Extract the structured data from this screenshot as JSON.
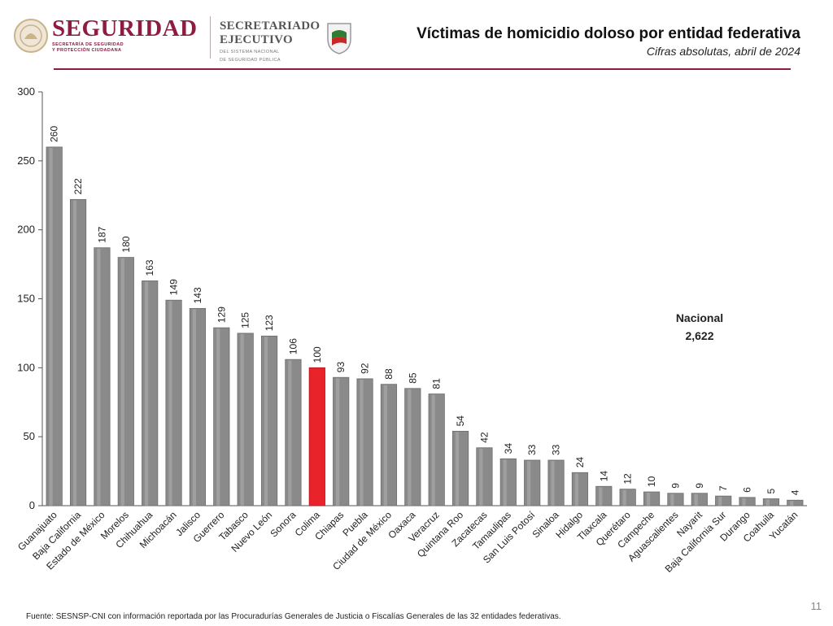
{
  "header": {
    "brand_title": "SEGURIDAD",
    "brand_sub_1": "SECRETARÍA DE SEGURIDAD",
    "brand_sub_2": "Y PROTECCIÓN CIUDADANA",
    "secretariado_1": "SECRETARIADO",
    "secretariado_2": "EJECUTIVO",
    "secretariado_sub_1": "DEL SISTEMA NACIONAL",
    "secretariado_sub_2": "DE SEGURIDAD PÚBLICA",
    "accent_color": "#8c1d40"
  },
  "chart_data": {
    "type": "bar",
    "title": "Víctimas de homicidio doloso por entidad federativa",
    "subtitle": "Cifras absolutas, abril de 2024",
    "categories": [
      "Guanajuato",
      "Baja California",
      "Estado de México",
      "Morelos",
      "Chihuahua",
      "Michoacán",
      "Jalisco",
      "Guerrero",
      "Tabasco",
      "Nuevo León",
      "Sonora",
      "Colima",
      "Chiapas",
      "Puebla",
      "Ciudad de México",
      "Oaxaca",
      "Veracruz",
      "Quintana Roo",
      "Zacatecas",
      "Tamaulipas",
      "San Luis Potosí",
      "Sinaloa",
      "Hidalgo",
      "Tlaxcala",
      "Querétaro",
      "Campeche",
      "Aguascalientes",
      "Nayarit",
      "Baja California Sur",
      "Durango",
      "Coahuila",
      "Yucatán"
    ],
    "values": [
      260,
      222,
      187,
      180,
      163,
      149,
      143,
      129,
      125,
      123,
      106,
      100,
      93,
      92,
      88,
      85,
      81,
      54,
      42,
      34,
      33,
      33,
      24,
      14,
      12,
      10,
      9,
      9,
      7,
      6,
      5,
      4
    ],
    "highlight": "Colima",
    "bar_color": "#8a8a8a",
    "highlight_color": "#e8232a",
    "ylim": [
      0,
      300
    ],
    "yticks": [
      0,
      50,
      100,
      150,
      200,
      250,
      300
    ],
    "grid": false,
    "data_labels": true
  },
  "nacional": {
    "label": "Nacional",
    "value": "2,622"
  },
  "footer": "Fuente: SESNSP-CNI con información reportada por las Procuradurías Generales de Justicia o Fiscalías Generales de las 32 entidades federativas.",
  "page_number": "11"
}
